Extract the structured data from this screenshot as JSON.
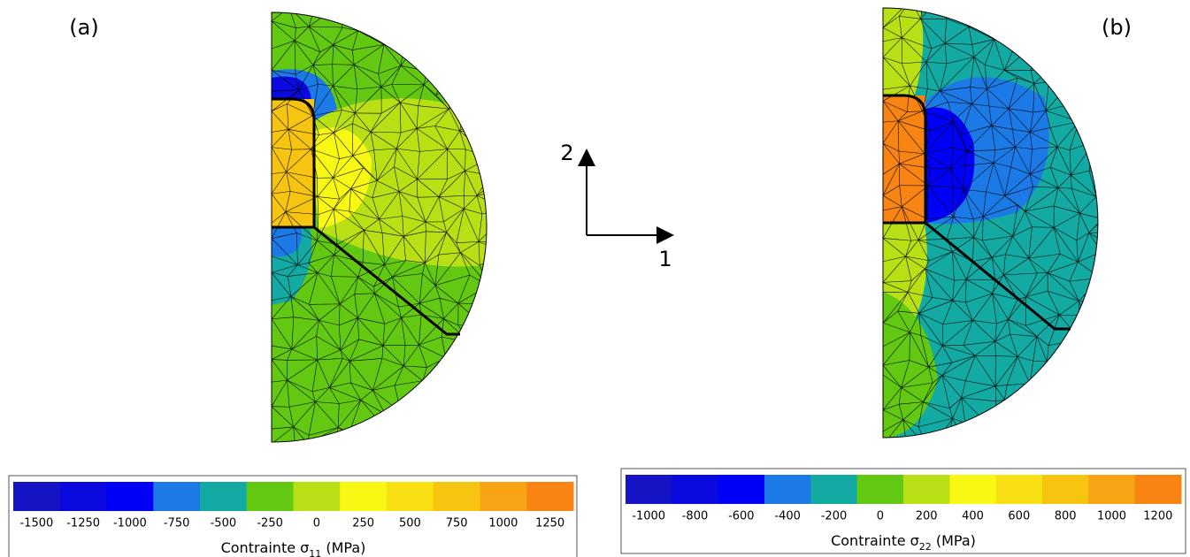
{
  "panels": [
    {
      "label": "(a)",
      "colorbar": {
        "title": "Contrainte σ",
        "title_sub": "11",
        "title_end": " (MPa)",
        "colors": [
          "#1414c4",
          "#0a0ae0",
          "#0000f8",
          "#1c7ae6",
          "#12aaa2",
          "#62c812",
          "#b8e014",
          "#f8f814",
          "#f8e012",
          "#f8c412",
          "#f8a414",
          "#f88414"
        ],
        "ticks": [
          -1500,
          -1250,
          -1000,
          -750,
          -500,
          -250,
          0,
          250,
          500,
          750,
          1000,
          1250
        ]
      }
    },
    {
      "label": "(b)",
      "colorbar": {
        "title": "Contrainte σ",
        "title_sub": "22",
        "title_end": " (MPa)",
        "colors": [
          "#1414c4",
          "#0a0ae0",
          "#0000f8",
          "#1c7ae6",
          "#12aaa2",
          "#62c812",
          "#b8e014",
          "#f8f814",
          "#f8e012",
          "#f8c412",
          "#f8a414",
          "#f88414"
        ],
        "ticks": [
          -1000,
          -800,
          -600,
          -400,
          -200,
          0,
          200,
          400,
          600,
          800,
          1000,
          1200
        ]
      }
    }
  ],
  "axes": {
    "vertical": "2",
    "horizontal": "1"
  }
}
